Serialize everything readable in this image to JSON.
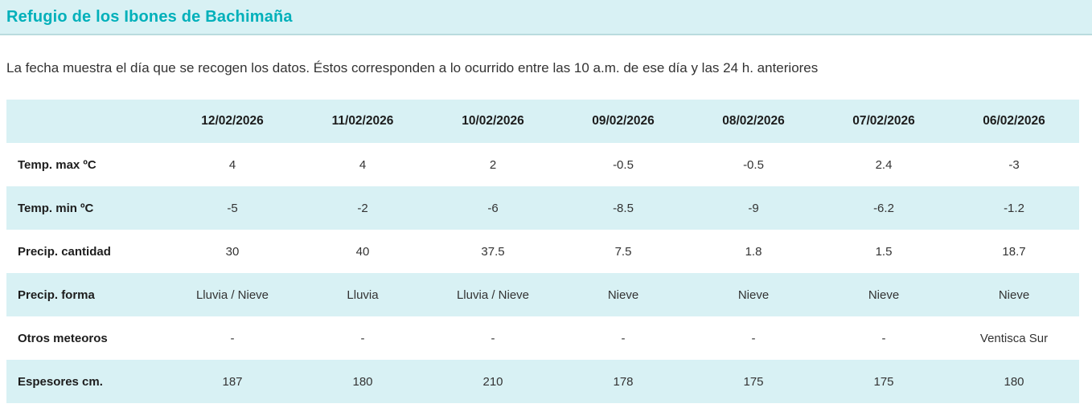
{
  "page": {
    "title": "Refugio de los Ibones de Bachimaña",
    "subtitle": "La fecha muestra el día que se recogen los datos. Éstos corresponden a lo ocurrido entre las 10 a.m. de ese día y las 24 h. anteriores"
  },
  "colors": {
    "accent_teal": "#00b0ba",
    "band_background": "#d8f1f4",
    "band_border": "#b9dbde",
    "body_text": "#333333"
  },
  "table": {
    "date_columns": [
      "12/02/2026",
      "11/02/2026",
      "10/02/2026",
      "09/02/2026",
      "08/02/2026",
      "07/02/2026",
      "06/02/2026"
    ],
    "rows": [
      {
        "label": "Temp. max ºC",
        "values": [
          "4",
          "4",
          "2",
          "-0.5",
          "-0.5",
          "2.4",
          "-3"
        ]
      },
      {
        "label": "Temp. min ºC",
        "values": [
          "-5",
          "-2",
          "-6",
          "-8.5",
          "-9",
          "-6.2",
          "-1.2"
        ]
      },
      {
        "label": "Precip. cantidad",
        "values": [
          "30",
          "40",
          "37.5",
          "7.5",
          "1.8",
          "1.5",
          "18.7"
        ]
      },
      {
        "label": "Precip. forma",
        "values": [
          "Lluvia / Nieve",
          "Lluvia",
          "Lluvia / Nieve",
          "Nieve",
          "Nieve",
          "Nieve",
          "Nieve"
        ]
      },
      {
        "label": "Otros meteoros",
        "values": [
          "-",
          "-",
          "-",
          "-",
          "-",
          "-",
          "Ventisca Sur"
        ]
      },
      {
        "label": "Espesores cm.",
        "values": [
          "187",
          "180",
          "210",
          "178",
          "175",
          "175",
          "180"
        ]
      }
    ]
  },
  "chart_data": {
    "type": "table",
    "title": "Refugio de los Ibones de Bachimaña",
    "subtitle": "La fecha muestra el día que se recogen los datos. Éstos corresponden a lo ocurrido entre las 10 a.m. de ese día y las 24 h. anteriores",
    "columns": [
      "12/02/2026",
      "11/02/2026",
      "10/02/2026",
      "09/02/2026",
      "08/02/2026",
      "07/02/2026",
      "06/02/2026"
    ],
    "series": [
      {
        "name": "Temp. max ºC",
        "values": [
          4,
          4,
          2,
          -0.5,
          -0.5,
          2.4,
          -3
        ]
      },
      {
        "name": "Temp. min ºC",
        "values": [
          -5,
          -2,
          -6,
          -8.5,
          -9,
          -6.2,
          -1.2
        ]
      },
      {
        "name": "Precip. cantidad",
        "values": [
          30,
          40,
          37.5,
          7.5,
          1.8,
          1.5,
          18.7
        ]
      },
      {
        "name": "Precip. forma",
        "values": [
          "Lluvia / Nieve",
          "Lluvia",
          "Lluvia / Nieve",
          "Nieve",
          "Nieve",
          "Nieve",
          "Nieve"
        ]
      },
      {
        "name": "Otros meteoros",
        "values": [
          "-",
          "-",
          "-",
          "-",
          "-",
          "-",
          "Ventisca Sur"
        ]
      },
      {
        "name": "Espesores cm.",
        "values": [
          187,
          180,
          210,
          178,
          175,
          175,
          180
        ]
      }
    ]
  }
}
